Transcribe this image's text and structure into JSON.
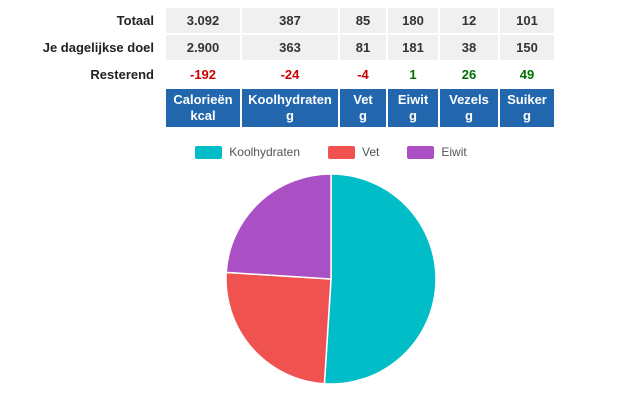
{
  "table": {
    "columns": [
      {
        "name": "Calorieën",
        "unit": "kcal"
      },
      {
        "name": "Koolhydraten",
        "unit": "g"
      },
      {
        "name": "Vet",
        "unit": "g"
      },
      {
        "name": "Eiwit",
        "unit": "g"
      },
      {
        "name": "Vezels",
        "unit": "g"
      },
      {
        "name": "Suiker",
        "unit": "g"
      }
    ],
    "rows": [
      {
        "label": "Totaal",
        "values": [
          "3.092",
          "387",
          "85",
          "180",
          "12",
          "101"
        ]
      },
      {
        "label": "Je dagelijkse doel",
        "values": [
          "2.900",
          "363",
          "81",
          "181",
          "38",
          "150"
        ]
      },
      {
        "label": "Resterend",
        "values": [
          "-192",
          "-24",
          "-4",
          "1",
          "26",
          "49"
        ]
      }
    ]
  },
  "chart_data": {
    "type": "pie",
    "title": "",
    "labels": [
      "Koolhydraten",
      "Vet",
      "Eiwit"
    ],
    "values": [
      51,
      25,
      24
    ],
    "colors": [
      "#00BDC8",
      "#F0524F",
      "#AB4FC4"
    ],
    "legend_position": "top"
  },
  "colors": {
    "header_bg": "#2267AE",
    "header_text": "#FFFFFF",
    "negative_value": "#CC0000",
    "positive_value": "#007000",
    "row_bg": "#F0F0F0"
  }
}
